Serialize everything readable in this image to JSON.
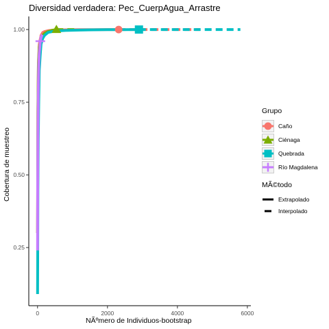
{
  "chart_data": {
    "type": "line",
    "title": "Diversidad verdadera: Pec_CuerpAgua_Arrastre",
    "xlabel": "NÃºmero de Individuos-bootstrap",
    "ylabel": "Cobertura de muestreo",
    "xlim": [
      -250,
      6100
    ],
    "ylim": [
      0.05,
      1.045
    ],
    "xticks": [
      0,
      2000,
      4000,
      6000
    ],
    "xtick_labels": [
      "0",
      "2000",
      "4000",
      "6000"
    ],
    "yticks": [
      0.25,
      0.5,
      0.75,
      1.0
    ],
    "ytick_labels": [
      "0.25",
      "0.50",
      "0.75",
      "1.00"
    ],
    "grid": false,
    "legend": {
      "groups_title": "Grupo",
      "methods_title": "MÃ©todo",
      "placement": "right"
    },
    "series": [
      {
        "name": "Caño",
        "color": "#F8766D",
        "shape": "circle",
        "observed": [
          2320,
          1.0
        ],
        "x": [
          1,
          10,
          25,
          50,
          100,
          150,
          200,
          300,
          500,
          800,
          1200,
          1600,
          2000,
          2320,
          3000,
          3600,
          4200,
          4640
        ],
        "y": [
          0.3,
          0.7,
          0.88,
          0.95,
          0.98,
          0.99,
          0.993,
          0.996,
          0.998,
          0.999,
          0.9995,
          0.9998,
          0.9999,
          1.0,
          1.0,
          1.0,
          1.0,
          1.0
        ]
      },
      {
        "name": "Ciénaga",
        "color": "#7CAE00",
        "shape": "triangle",
        "observed": [
          540,
          1.0
        ],
        "x": [
          1,
          10,
          25,
          50,
          100,
          150,
          200,
          300,
          400,
          540,
          700,
          850,
          1000,
          1080
        ],
        "y": [
          0.3,
          0.72,
          0.88,
          0.94,
          0.97,
          0.98,
          0.987,
          0.993,
          0.997,
          1.0,
          1.0,
          1.0,
          1.0,
          1.0
        ]
      },
      {
        "name": "Quebrada",
        "color": "#00BFC4",
        "shape": "square",
        "observed": [
          2900,
          1.0
        ],
        "x": [
          1,
          5,
          10,
          20,
          35,
          50,
          75,
          100,
          150,
          200,
          300,
          500,
          800,
          1200,
          1600,
          2000,
          2500,
          2900,
          3500,
          4200,
          5000,
          5800
        ],
        "y": [
          0.09,
          0.2,
          0.45,
          0.62,
          0.75,
          0.86,
          0.91,
          0.95,
          0.97,
          0.98,
          0.99,
          0.995,
          0.997,
          0.998,
          0.999,
          0.9995,
          0.9998,
          1.0,
          1.0,
          1.0,
          1.0,
          1.0
        ]
      },
      {
        "name": "Río Magdalena",
        "color": "#C77CFF",
        "shape": "cross",
        "observed": [
          80,
          0.96
        ],
        "x": [
          1,
          5,
          10,
          20,
          35,
          50,
          80,
          100,
          130,
          160
        ],
        "y": [
          0.24,
          0.45,
          0.62,
          0.78,
          0.88,
          0.92,
          0.96,
          0.972,
          0.982,
          0.988
        ]
      }
    ],
    "methods": [
      {
        "name": "Extrapolado",
        "dash": "solid"
      },
      {
        "name": "Interpolado",
        "dash": "dashed"
      }
    ]
  }
}
